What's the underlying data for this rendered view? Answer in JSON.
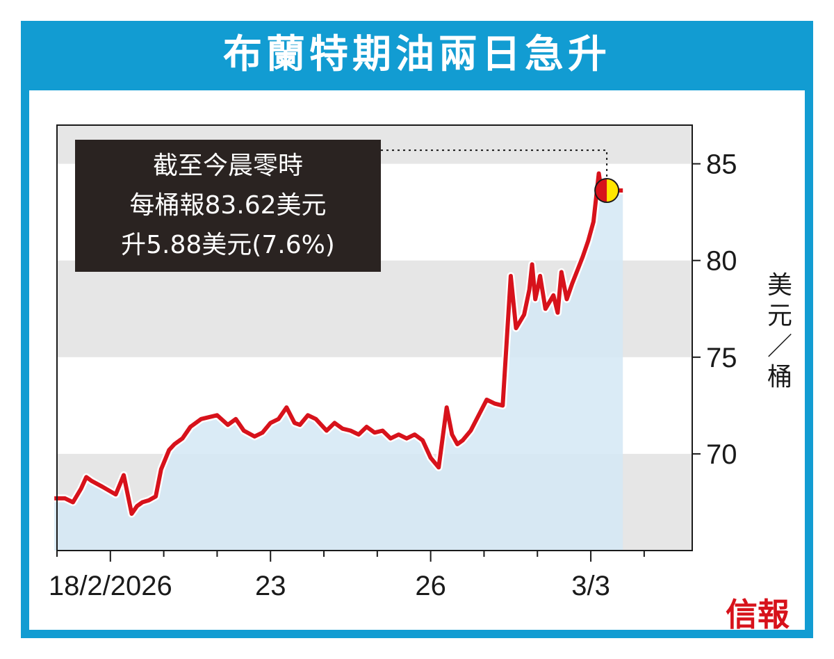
{
  "title": "布蘭特期油兩日急升",
  "annotation": {
    "lines": [
      "截至今晨零時",
      "每桶報83.62美元",
      "升5.88美元(7.6%)"
    ]
  },
  "brand": "信報",
  "colors": {
    "frame": "#129cd2",
    "line": "#d7121b",
    "area": "#d3e8f4",
    "band": "#e6e6e6",
    "marker_fill": "#ffe600"
  },
  "chart_data": {
    "type": "line",
    "title": "布蘭特期油兩日急升",
    "ylabel": "美元／桶",
    "ylim": [
      65,
      87
    ],
    "yticks": [
      70,
      75,
      80,
      85
    ],
    "xlim": [
      -1.0,
      10.9
    ],
    "xticks": [
      {
        "x": 0,
        "label": "18/2/2026"
      },
      {
        "x": 3,
        "label": "23"
      },
      {
        "x": 6,
        "label": "26"
      },
      {
        "x": 9,
        "label": "3/3"
      }
    ],
    "minor_xticks": [
      -1,
      1,
      2,
      4,
      5,
      7,
      8,
      10
    ],
    "grid": "alternating horizontal bands",
    "last_value": 83.62,
    "series": [
      {
        "x": [
          -1.05,
          -0.85,
          -0.7,
          -0.55,
          -0.45,
          -0.35,
          -0.15,
          0.1,
          0.25,
          0.4,
          0.5,
          0.6,
          0.72,
          0.85,
          0.95,
          1.1,
          1.2,
          1.35,
          1.5,
          1.7,
          1.85,
          2.0,
          2.2,
          2.35,
          2.5,
          2.7,
          2.85,
          3.0,
          3.15,
          3.3,
          3.45,
          3.55,
          3.7,
          3.85,
          4.05,
          4.2,
          4.35,
          4.5,
          4.65,
          4.8,
          4.95,
          5.1,
          5.25,
          5.4,
          5.55,
          5.7,
          5.85,
          6.0,
          6.15,
          6.3,
          6.4,
          6.5,
          6.6,
          6.75,
          6.9,
          7.05,
          7.2,
          7.35,
          7.5,
          7.6,
          7.75,
          7.85,
          7.9,
          7.96,
          8.0,
          8.05,
          8.15,
          8.3,
          8.38,
          8.45,
          8.55,
          8.65,
          8.75,
          8.85,
          8.95,
          9.05,
          9.15,
          9.22,
          9.3,
          9.4,
          9.5,
          9.55,
          9.6
        ],
        "y": [
          67.7,
          67.7,
          67.5,
          68.2,
          68.8,
          68.6,
          68.3,
          67.9,
          68.9,
          66.9,
          67.3,
          67.5,
          67.6,
          67.8,
          69.2,
          70.2,
          70.5,
          70.8,
          71.4,
          71.8,
          71.9,
          72.0,
          71.5,
          71.8,
          71.2,
          70.9,
          71.1,
          71.6,
          71.8,
          72.4,
          71.6,
          71.5,
          72.0,
          71.8,
          71.2,
          71.6,
          71.3,
          71.2,
          71.0,
          71.4,
          71.1,
          71.2,
          70.8,
          71.0,
          70.8,
          71.0,
          70.7,
          69.8,
          69.3,
          72.4,
          71.0,
          70.5,
          70.7,
          71.2,
          72.0,
          72.8,
          72.6,
          72.5,
          79.2,
          76.5,
          77.2,
          78.5,
          79.8,
          78.0,
          78.5,
          79.2,
          77.5,
          78.2,
          77.3,
          79.4,
          78.0,
          78.8,
          79.5,
          80.2,
          81.0,
          82.0,
          84.5,
          83.2,
          83.62,
          83.62,
          83.62,
          83.62,
          83.62
        ]
      }
    ]
  }
}
